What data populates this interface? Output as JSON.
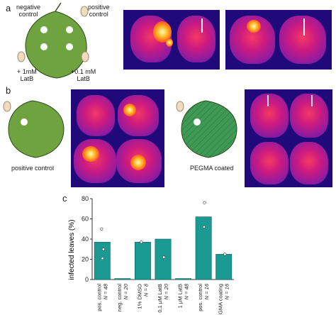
{
  "panels": {
    "a": {
      "letter": "a",
      "labels": {
        "neg": "negative\ncontrol",
        "pos": "positive\ncontrol",
        "latb1": "+ 1mM\nLatB",
        "latb01": "+0.1 mM\nLatB"
      }
    },
    "b": {
      "letter": "b",
      "left_caption": "positive control",
      "right_caption": "PEGMA coated"
    },
    "c": {
      "letter": "c"
    }
  },
  "chart_data": {
    "type": "bar",
    "ylabel": "infected leaves (%)",
    "ylim": [
      0,
      80
    ],
    "yticks": [
      0,
      20,
      40,
      60,
      80
    ],
    "bar_color": "#1a9a93",
    "categories": [
      {
        "label": "pos. control",
        "n": "N = 48"
      },
      {
        "label": "neg. control",
        "n": "N = 20"
      },
      {
        "label": "1% DMSO",
        "n": "N = 8"
      },
      {
        "label": "0.1 μM LatB",
        "n": "N = 20"
      },
      {
        "label": "1 μM LatB",
        "n": "N = 48"
      },
      {
        "label": "pos. control",
        "n": "N = 16"
      },
      {
        "label": "PEGMA coating",
        "n": "N = 16"
      }
    ],
    "values": [
      37,
      1,
      37,
      40,
      1,
      62,
      25
    ],
    "points": [
      [
        50,
        30,
        21
      ],
      [],
      [
        37
      ],
      [
        22
      ],
      [],
      [
        76,
        52
      ],
      [
        25
      ]
    ]
  }
}
